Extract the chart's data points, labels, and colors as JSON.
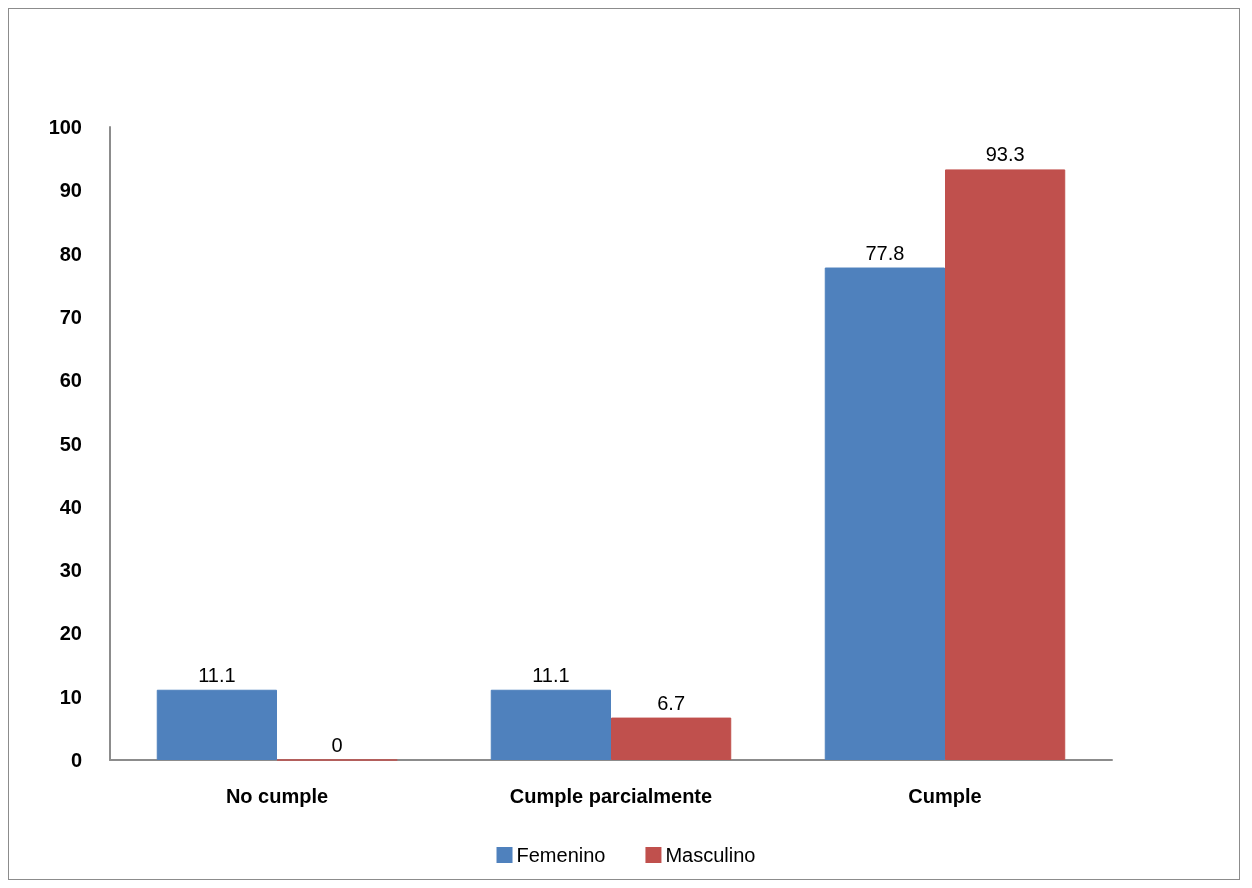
{
  "chart_data": {
    "type": "bar",
    "categories": [
      "No cumple",
      "Cumple parcialmente",
      "Cumple"
    ],
    "series": [
      {
        "name": "Femenino",
        "color": "#4f81bd",
        "values": [
          11.1,
          11.1,
          77.8
        ]
      },
      {
        "name": "Masculino",
        "color": "#c0504d",
        "values": [
          0,
          6.7,
          93.3
        ]
      }
    ],
    "ylim": [
      0,
      100
    ],
    "yticks": [
      0,
      10,
      20,
      30,
      40,
      50,
      60,
      70,
      80,
      90,
      100
    ],
    "grid": false,
    "legend": "bottom",
    "data_labels": true
  }
}
